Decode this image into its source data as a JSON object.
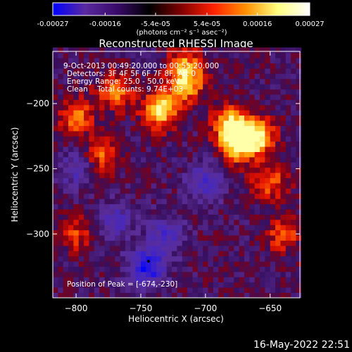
{
  "chart_data": {
    "type": "heatmap",
    "title": "Reconstructed RHESSI Image",
    "xlabel": "Heliocentric X (arcsec)",
    "ylabel": "Heliocentric Y (arcsec)",
    "xlim": [
      -818,
      -627
    ],
    "ylim": [
      -349,
      -160
    ],
    "xticks": [
      -800,
      -750,
      -700,
      -650
    ],
    "yticks": [
      -200,
      -250,
      -300
    ],
    "xtick_labels": [
      "−800",
      "−750",
      "−700",
      "−650"
    ],
    "ytick_labels": [
      "−200",
      "−250",
      "−300"
    ],
    "colorbar": {
      "min": -0.00027,
      "max": 0.00027,
      "tick_values": [
        -0.00027,
        -0.00016,
        -5.4e-05,
        5.4e-05,
        0.00016,
        0.00027
      ],
      "tick_labels": [
        "-0.00027",
        "-0.00016",
        "-5.4e-05",
        "5.4e-05",
        "0.00016",
        "0.00027"
      ],
      "label": "(photons cm⁻² s⁻¹ asec⁻²)",
      "colors": [
        "#0000ff",
        "#5a2aa0",
        "#3a0a6a",
        "#000000",
        "#800000",
        "#ff2000",
        "#ff9000",
        "#ffff80",
        "#ffffff"
      ]
    },
    "annotations": [
      "9-Oct-2013 00:49:20.000 to 00:55:20.000",
      "Detectors: 3F 4F 5F 6F 7F 8F, Att 0",
      "Energy Range: 25.0 - 50.0 keV",
      "Clean    Total counts: 9.74E+03"
    ],
    "peak_label": "Position of Peak = [-674,-230]",
    "peak": {
      "x": -674,
      "y": -230
    },
    "bright_regions": [
      {
        "x": -735,
        "y": -205,
        "level": 0.95
      },
      {
        "x": -715,
        "y": -185,
        "level": 0.75
      },
      {
        "x": -680,
        "y": -215,
        "level": 0.8
      },
      {
        "x": -660,
        "y": -225,
        "level": 0.85
      },
      {
        "x": -675,
        "y": -230,
        "level": 1.0
      },
      {
        "x": -770,
        "y": -190,
        "level": 0.65
      },
      {
        "x": -800,
        "y": -210,
        "level": 0.6
      },
      {
        "x": -780,
        "y": -240,
        "level": 0.55
      },
      {
        "x": -650,
        "y": -260,
        "level": 0.55
      },
      {
        "x": -640,
        "y": -300,
        "level": 0.5
      },
      {
        "x": -800,
        "y": -300,
        "level": 0.45
      },
      {
        "x": -715,
        "y": -170,
        "level": 0.55
      }
    ],
    "dark_regions": [
      {
        "x": -745,
        "y": -325,
        "level": -0.9
      },
      {
        "x": -730,
        "y": -300,
        "level": -0.5
      },
      {
        "x": -700,
        "y": -260,
        "level": -0.55
      },
      {
        "x": -770,
        "y": -290,
        "level": -0.5
      },
      {
        "x": -800,
        "y": -250,
        "level": -0.45
      }
    ]
  },
  "footer": {
    "timestamp": "16-May-2022 22:51"
  }
}
